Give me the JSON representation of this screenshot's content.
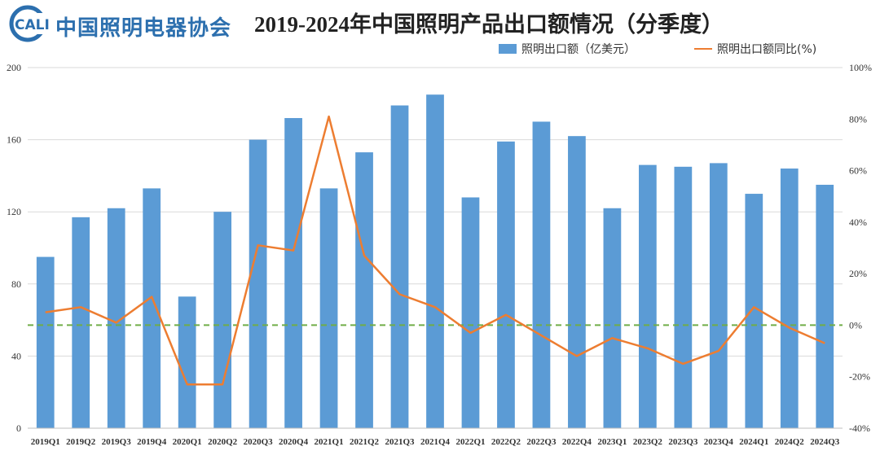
{
  "header": {
    "org_name": "中国照明电器协会",
    "org_abbr": "CALI",
    "title": "2019-2024年中国照明产品出口额情况（分季度）"
  },
  "colors": {
    "bar": "#5b9bd5",
    "line": "#ed7d31",
    "zero_line": "#70ad47",
    "grid": "#d9d9d9",
    "logo": "#2c6fae"
  },
  "chart_data": {
    "type": "bar",
    "title": "2019-2024年中国照明产品出口额情况（分季度）",
    "categories": [
      "2019Q1",
      "2019Q2",
      "2019Q3",
      "2019Q4",
      "2020Q1",
      "2020Q2",
      "2020Q3",
      "2020Q4",
      "2021Q1",
      "2021Q2",
      "2021Q3",
      "2021Q4",
      "2022Q1",
      "2022Q2",
      "2022Q3",
      "2022Q4",
      "2023Q1",
      "2023Q2",
      "2023Q3",
      "2023Q4",
      "2024Q1",
      "2024Q2",
      "2024Q3"
    ],
    "series": [
      {
        "name": "照明出口额（亿美元）",
        "type": "bar",
        "axis": "left",
        "values": [
          95,
          117,
          122,
          133,
          73,
          120,
          160,
          172,
          133,
          153,
          179,
          185,
          128,
          159,
          170,
          162,
          122,
          146,
          145,
          147,
          130,
          144,
          135
        ]
      },
      {
        "name": "照明出口额同比(%)",
        "type": "line",
        "axis": "right",
        "values": [
          5,
          7,
          1,
          11,
          -23,
          -23,
          31,
          29,
          81,
          27,
          12,
          7,
          -3,
          4,
          -4,
          -12,
          -5,
          -9,
          -15,
          -10,
          7,
          -1,
          -7
        ]
      }
    ],
    "left_axis": {
      "min": 0,
      "max": 200,
      "ticks": [
        0,
        40,
        80,
        120,
        160,
        200
      ]
    },
    "right_axis": {
      "min": -40,
      "max": 100,
      "ticks": [
        -40,
        -20,
        0,
        20,
        40,
        60,
        80,
        100
      ],
      "tick_labels": [
        "-40%",
        "-20%",
        "0%",
        "20%",
        "40%",
        "60%",
        "80%",
        "100%"
      ]
    },
    "reference_line": {
      "axis": "right",
      "value": 0,
      "style": "dashed"
    },
    "legend_position": "top-right"
  }
}
